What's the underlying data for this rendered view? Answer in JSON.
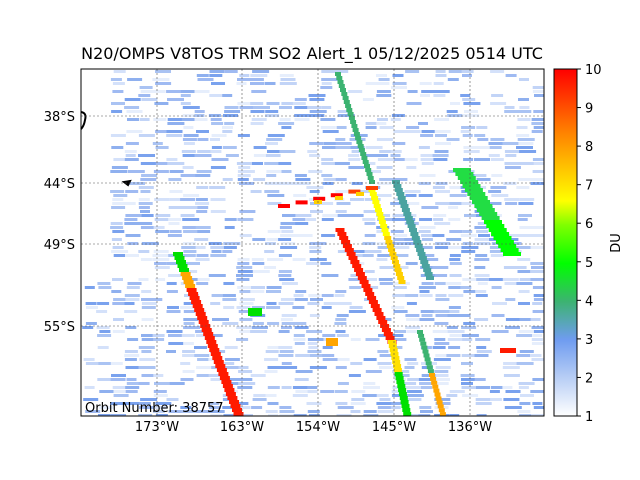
{
  "title": "N20/OMPS V8TOS TRM SO2 Alert_1 05/12/2025 0514 UTC",
  "orbit_label": "Orbit Number: 38757",
  "lat_ticks": [
    "38°S",
    "44°S",
    "49°S",
    "55°S"
  ],
  "lon_ticks": [
    "173°W",
    "163°W",
    "154°W",
    "145°W",
    "136°W"
  ],
  "colorbar": {
    "label": "DU",
    "min": 1,
    "max": 10,
    "ticks": [
      "1",
      "2",
      "3",
      "4",
      "5",
      "6",
      "7",
      "8",
      "9",
      "10"
    ],
    "colors": [
      "#ffffff",
      "#6f9cf0",
      "#3cb371",
      "#00ff00",
      "#ffff00",
      "#ffa500",
      "#ff0000"
    ]
  }
}
